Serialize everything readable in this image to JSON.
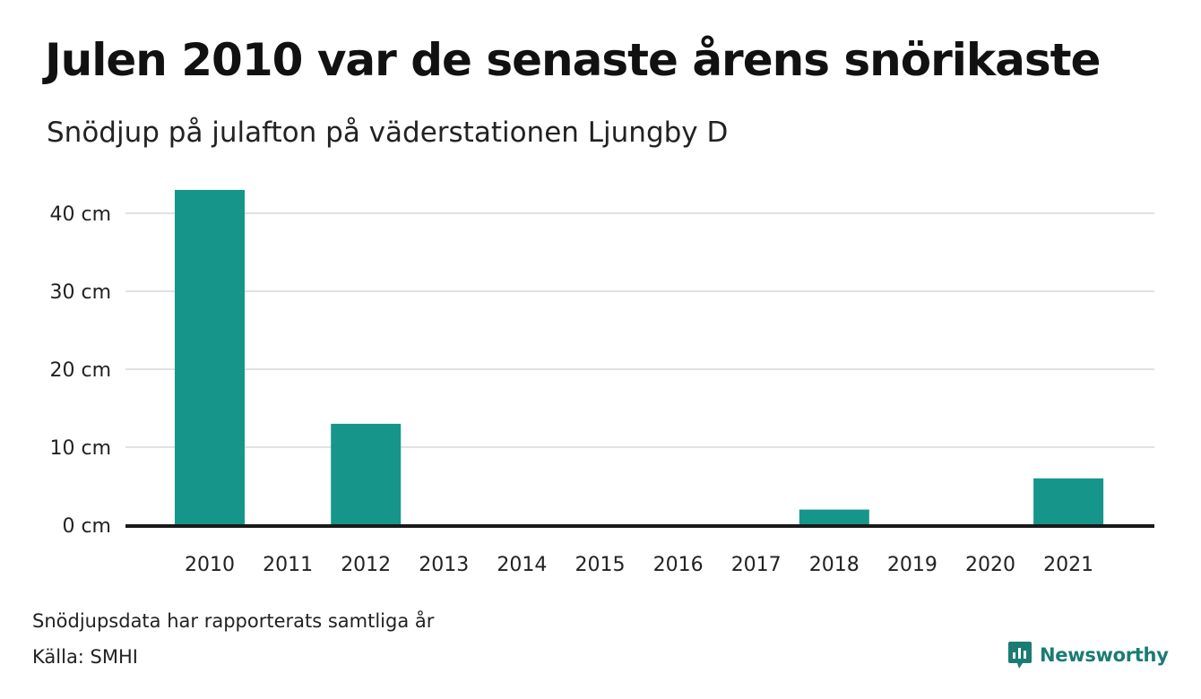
{
  "title": "Julen 2010 var de senaste årens snörikaste",
  "subtitle": "Snödjup på julafton på väderstationen Ljungby D",
  "footer": {
    "note": "Snödjupsdata har rapporterats samtliga år",
    "source": "Källa: SMHI"
  },
  "brand": {
    "name": "Newsworthy",
    "icon": "newsworthy-chart-bubble-icon",
    "color": "#1a7c72"
  },
  "colors": {
    "bar": "#16968a",
    "grid": "#e1e1e1",
    "baseline": "#1a1a1a",
    "text": "#222222"
  },
  "chart_data": {
    "type": "bar",
    "categories": [
      "2010",
      "2011",
      "2012",
      "2013",
      "2014",
      "2015",
      "2016",
      "2017",
      "2018",
      "2019",
      "2020",
      "2021"
    ],
    "values": [
      43,
      0,
      13,
      0,
      0,
      0,
      0,
      0,
      2,
      0,
      0,
      6
    ],
    "unit": "cm",
    "ylim": [
      0,
      43
    ],
    "yticks": [
      0,
      10,
      20,
      30,
      40
    ],
    "ytick_labels": [
      "0 cm",
      "10 cm",
      "20 cm",
      "30 cm",
      "40 cm"
    ],
    "xlabel": "",
    "ylabel": "",
    "grid": true,
    "legend": "none"
  }
}
